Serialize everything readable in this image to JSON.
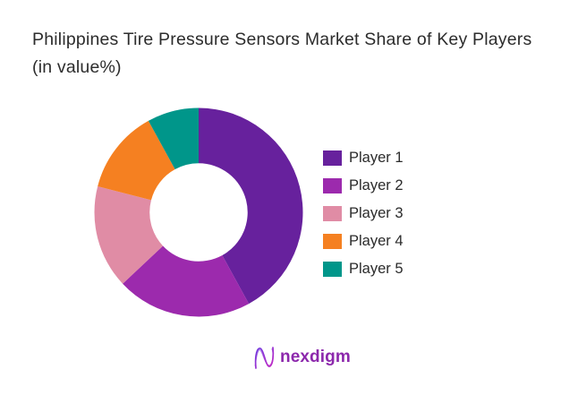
{
  "title": {
    "text": "Philippines Tire Pressure Sensors Market Share of Key Players (in value%)"
  },
  "chart_data": {
    "type": "pie",
    "subtype": "donut",
    "title": "Philippines Tire Pressure Sensors Market Share of Key Players (in value%)",
    "categories": [
      "Player 1",
      "Player 2",
      "Player 3",
      "Player 4",
      "Player 5"
    ],
    "values": [
      42,
      21,
      16,
      13,
      8
    ],
    "unit": "value%",
    "colors": [
      "#67219D",
      "#9C2AAD",
      "#E08CA5",
      "#F58021",
      "#00968A"
    ],
    "start_angle_deg": 0,
    "direction": "clockwise",
    "inner_radius_ratio": 0.47,
    "legend_position": "right",
    "data_labels": false
  },
  "legend": {
    "items": [
      {
        "label": "Player 1",
        "color": "#67219D"
      },
      {
        "label": "Player 2",
        "color": "#9C2AAD"
      },
      {
        "label": "Player 3",
        "color": "#E08CA5"
      },
      {
        "label": "Player 4",
        "color": "#F58021"
      },
      {
        "label": "Player 5",
        "color": "#00968A"
      }
    ]
  },
  "logo": {
    "text": "nexdigm",
    "color": "#8C28AC",
    "mark_icon": "nexdigm-n-mark",
    "mark_gradient": [
      "#6E3BE0",
      "#C429C4"
    ]
  },
  "colors": {
    "background": "#FFFFFF",
    "title_text": "#2C2C2C",
    "legend_text": "#2B2B2B"
  }
}
